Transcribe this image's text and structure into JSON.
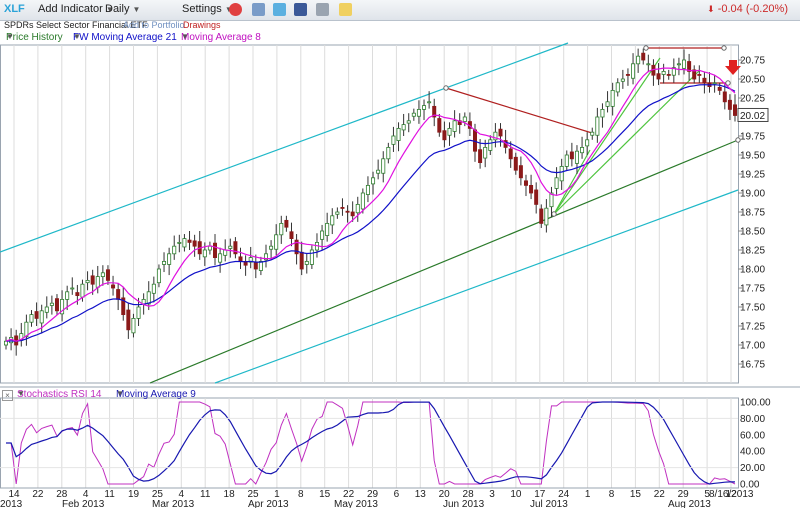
{
  "toolbar": {
    "symbol": "XLF",
    "add_indicator": "Add Indicator",
    "period": "Daily",
    "settings": "Settings",
    "change": "-0.04 (-0.20%)"
  },
  "subbar": {
    "name": "SPDRs Select Sector Financial ETF",
    "add_portfolio": "Add to Portfolio",
    "drawings": "Drawings"
  },
  "legend": {
    "price_history": "Price History",
    "ma21": "FW Moving Average 21",
    "ma8": "Moving Average 8",
    "stoch": "Stochastics RSI 14",
    "ma9": "Moving Average 9"
  },
  "colors": {
    "ma21": "#1010c8",
    "ma8": "#e010e0",
    "channel": "#1fb8c8",
    "support": "#2a7a2a",
    "resistance": "#b02020",
    "fan": "#4ec43e",
    "up_candle": "#2e7d2e",
    "down_candle": "#8b1a1a",
    "stoch": "#c030c0",
    "stoch_ma": "#1818b0"
  },
  "chart_data": [
    {
      "type": "candlestick",
      "y_ticks": [
        "20.75",
        "20.50",
        "20.25",
        "20.00",
        "19.75",
        "19.50",
        "19.25",
        "19.00",
        "18.75",
        "18.50",
        "18.25",
        "18.00",
        "17.75",
        "17.50",
        "17.25",
        "17.00",
        "16.75"
      ],
      "ylim": [
        16.75,
        20.75
      ],
      "last_price": "20.02",
      "x_ticks": [
        "14",
        "22",
        "28",
        "4",
        "11",
        "19",
        "25",
        "4",
        "11",
        "18",
        "25",
        "1",
        "8",
        "15",
        "22",
        "29",
        "6",
        "13",
        "20",
        "28",
        "3",
        "10",
        "17",
        "24",
        "1",
        "8",
        "15",
        "22",
        "29",
        "5",
        "12"
      ],
      "months": [
        "2013",
        "Feb 2013",
        "Mar 2013",
        "Apr 2013",
        "May 2013",
        "Jun 2013",
        "Jul 2013",
        "Aug 2013"
      ],
      "last_date": "8/16/2013",
      "closes": [
        17.05,
        17.1,
        17.0,
        17.15,
        17.3,
        17.4,
        17.35,
        17.45,
        17.5,
        17.55,
        17.45,
        17.6,
        17.7,
        17.75,
        17.65,
        17.8,
        17.85,
        17.8,
        17.9,
        17.95,
        17.85,
        17.75,
        17.6,
        17.4,
        17.2,
        17.35,
        17.5,
        17.6,
        17.7,
        17.8,
        18.0,
        18.1,
        18.2,
        18.3,
        18.35,
        18.4,
        18.35,
        18.3,
        18.2,
        18.25,
        18.3,
        18.15,
        18.2,
        18.25,
        18.3,
        18.2,
        18.1,
        18.05,
        18.15,
        18.0,
        18.1,
        18.2,
        18.3,
        18.45,
        18.6,
        18.55,
        18.4,
        18.2,
        18.0,
        18.1,
        18.25,
        18.35,
        18.5,
        18.6,
        18.7,
        18.75,
        18.8,
        18.75,
        18.7,
        18.85,
        19.0,
        19.1,
        19.2,
        19.3,
        19.45,
        19.6,
        19.75,
        19.85,
        19.9,
        19.95,
        20.05,
        20.1,
        20.15,
        20.2,
        20.0,
        19.8,
        19.7,
        19.85,
        19.95,
        19.9,
        20.0,
        19.85,
        19.55,
        19.4,
        19.6,
        19.7,
        19.8,
        19.75,
        19.6,
        19.45,
        19.3,
        19.2,
        19.1,
        19.0,
        18.85,
        18.6,
        18.8,
        19.0,
        19.2,
        19.35,
        19.5,
        19.45,
        19.55,
        19.6,
        19.7,
        19.8,
        20.0,
        20.1,
        20.2,
        20.35,
        20.45,
        20.5,
        20.55,
        20.7,
        20.8,
        20.75,
        20.7,
        20.55,
        20.5,
        20.6,
        20.55,
        20.65,
        20.7,
        20.75,
        20.6,
        20.5,
        20.55,
        20.45,
        20.4,
        20.45,
        20.35,
        20.2,
        20.1,
        20.02
      ]
    },
    {
      "type": "line",
      "name": "Stochastics RSI 14",
      "y_ticks": [
        "100.00",
        "80.00",
        "60.00",
        "40.00",
        "20.00",
        "0.00"
      ],
      "ylim": [
        0,
        100
      ]
    }
  ]
}
